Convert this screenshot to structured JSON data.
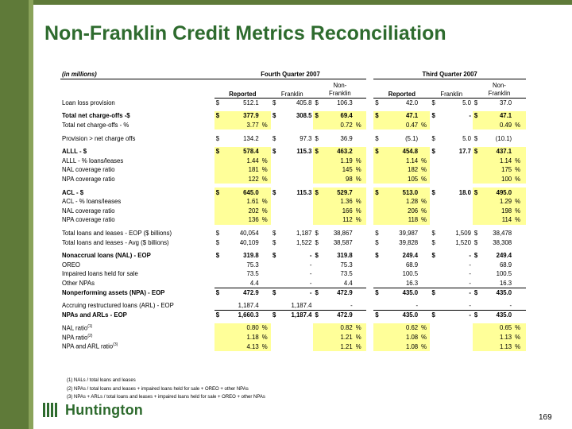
{
  "title": "Non-Franklin Credit Metrics Reconciliation",
  "units_label": "(in millions)",
  "period1": "Fourth Quarter 2007",
  "period2": "Third Quarter 2007",
  "col_headers": {
    "reported": "Reported",
    "franklin": "Franklin",
    "non_franklin_1": "Non-",
    "non_franklin_2": "Franklin"
  },
  "rows": [
    {
      "label": "Loan loss provision",
      "bold": false,
      "q4": [
        "$",
        "512.1",
        "",
        "$",
        "405.8",
        "$",
        "106.3",
        ""
      ],
      "q3": [
        "$",
        "42.0",
        "",
        "$",
        "5.0",
        "$",
        "37.0",
        ""
      ]
    },
    {
      "label": "Total net charge-offs -$",
      "bold": true,
      "q4": [
        "$",
        "377.9",
        "",
        "$",
        "308.5",
        "$",
        "69.4",
        ""
      ],
      "q3": [
        "$",
        "47.1",
        "",
        "$",
        "-",
        "$",
        "47.1",
        ""
      ]
    },
    {
      "label": "Total net charge-offs - %",
      "bold": false,
      "q4": [
        "",
        "3.77",
        "%",
        "",
        "",
        "",
        "0.72",
        "%"
      ],
      "q3": [
        "",
        "0.47",
        "%",
        "",
        "",
        "",
        "0.49",
        "%"
      ]
    },
    {
      "label": "Provision > net charge offs",
      "bold": false,
      "q4": [
        "$",
        "134.2",
        "",
        "$",
        "97.3",
        "$",
        "36.9",
        ""
      ],
      "q3": [
        "$",
        "(5.1)",
        "",
        "$",
        "5.0",
        "$",
        "(10.1)",
        ""
      ]
    },
    {
      "label": "ALLL - $",
      "bold": true,
      "q4": [
        "$",
        "578.4",
        "",
        "$",
        "115.3",
        "$",
        "463.2",
        ""
      ],
      "q3": [
        "$",
        "454.8",
        "",
        "$",
        "17.7",
        "$",
        "437.1",
        ""
      ]
    },
    {
      "label": "ALLL - % loans/leases",
      "bold": false,
      "q4": [
        "",
        "1.44",
        "%",
        "",
        "",
        "",
        "1.19",
        "%"
      ],
      "q3": [
        "",
        "1.14",
        "%",
        "",
        "",
        "",
        "1.14",
        "%"
      ]
    },
    {
      "label": "NAL coverage ratio",
      "bold": false,
      "q4": [
        "",
        "181",
        "%",
        "",
        "",
        "",
        "145",
        "%"
      ],
      "q3": [
        "",
        "182",
        "%",
        "",
        "",
        "",
        "175",
        "%"
      ]
    },
    {
      "label": "NPA coverage ratio",
      "bold": false,
      "q4": [
        "",
        "122",
        "%",
        "",
        "",
        "",
        "98",
        "%"
      ],
      "q3": [
        "",
        "105",
        "%",
        "",
        "",
        "",
        "100",
        "%"
      ]
    },
    {
      "label": "ACL - $",
      "bold": true,
      "q4": [
        "$",
        "645.0",
        "",
        "$",
        "115.3",
        "$",
        "529.7",
        ""
      ],
      "q3": [
        "$",
        "513.0",
        "",
        "$",
        "18.0",
        "$",
        "495.0",
        ""
      ]
    },
    {
      "label": "ACL - % loans/leases",
      "bold": false,
      "q4": [
        "",
        "1.61",
        "%",
        "",
        "",
        "",
        "1.36",
        "%"
      ],
      "q3": [
        "",
        "1.28",
        "%",
        "",
        "",
        "",
        "1.29",
        "%"
      ]
    },
    {
      "label": "NAL coverage ratio",
      "bold": false,
      "q4": [
        "",
        "202",
        "%",
        "",
        "",
        "",
        "166",
        "%"
      ],
      "q3": [
        "",
        "206",
        "%",
        "",
        "",
        "",
        "198",
        "%"
      ]
    },
    {
      "label": "NPA coverage ratio",
      "bold": false,
      "q4": [
        "",
        "136",
        "%",
        "",
        "",
        "",
        "112",
        "%"
      ],
      "q3": [
        "",
        "118",
        "%",
        "",
        "",
        "",
        "114",
        "%"
      ]
    },
    {
      "label": "Total loans and leases - EOP ($ billions)",
      "bold": false,
      "q4": [
        "$",
        "40,054",
        "",
        "$",
        "1,187",
        "$",
        "38,867",
        ""
      ],
      "q3": [
        "$",
        "39,987",
        "",
        "$",
        "1,509",
        "$",
        "38,478",
        ""
      ]
    },
    {
      "label": "Total loans and leases - Avg ($ billions)",
      "bold": false,
      "q4": [
        "$",
        "40,109",
        "",
        "$",
        "1,522",
        "$",
        "38,587",
        ""
      ],
      "q3": [
        "$",
        "39,828",
        "",
        "$",
        "1,520",
        "$",
        "38,308",
        ""
      ]
    },
    {
      "label": "Nonaccrual loans (NAL) - EOP",
      "bold": true,
      "q4": [
        "$",
        "319.8",
        "",
        "$",
        "-",
        "$",
        "319.8",
        ""
      ],
      "q3": [
        "$",
        "249.4",
        "",
        "$",
        "-",
        "$",
        "249.4",
        ""
      ]
    },
    {
      "label": "OREO",
      "bold": false,
      "q4": [
        "",
        "75.3",
        "",
        "",
        "-",
        "",
        "75.3",
        ""
      ],
      "q3": [
        "",
        "68.9",
        "",
        "",
        "-",
        "",
        "68.9",
        ""
      ]
    },
    {
      "label": "Impaired loans held for sale",
      "bold": false,
      "q4": [
        "",
        "73.5",
        "",
        "",
        "-",
        "",
        "73.5",
        ""
      ],
      "q3": [
        "",
        "100.5",
        "",
        "",
        "-",
        "",
        "100.5",
        ""
      ]
    },
    {
      "label": "Other NPAs",
      "bold": false,
      "q4": [
        "",
        "4.4",
        "",
        "",
        "-",
        "",
        "4.4",
        ""
      ],
      "q3": [
        "",
        "16.3",
        "",
        "",
        "-",
        "",
        "16.3",
        ""
      ]
    },
    {
      "label": "Nonperforming assets (NPA) - EOP",
      "bold": true,
      "q4": [
        "$",
        "472.9",
        "",
        "$",
        "-",
        "$",
        "472.9",
        ""
      ],
      "q3": [
        "$",
        "435.0",
        "",
        "$",
        "-",
        "$",
        "435.0",
        ""
      ]
    },
    {
      "label": "Accruing restructured loans (ARL) - EOP",
      "bold": false,
      "q4": [
        "",
        "1,187.4",
        "",
        "",
        "1,187.4",
        "",
        "-",
        ""
      ],
      "q3": [
        "",
        "-",
        "",
        "",
        "-",
        "",
        "-",
        ""
      ]
    },
    {
      "label": "NPAs and ARLs - EOP",
      "bold": true,
      "q4": [
        "$",
        "1,660.3",
        "",
        "$",
        "1,187.4",
        "$",
        "472.9",
        ""
      ],
      "q3": [
        "$",
        "435.0",
        "",
        "$",
        "-",
        "$",
        "435.0",
        ""
      ]
    },
    {
      "label": "NAL ratio",
      "sup": "(1)",
      "bold": false,
      "q4": [
        "",
        "0.80",
        "%",
        "",
        "",
        "",
        "0.82",
        "%"
      ],
      "q3": [
        "",
        "0.62",
        "%",
        "",
        "",
        "",
        "0.65",
        "%"
      ]
    },
    {
      "label": "NPA ratio",
      "sup": "(2)",
      "bold": false,
      "q4": [
        "",
        "1.18",
        "%",
        "",
        "",
        "",
        "1.21",
        "%"
      ],
      "q3": [
        "",
        "1.08",
        "%",
        "",
        "",
        "",
        "1.13",
        "%"
      ]
    },
    {
      "label": "NPA and ARL ratio",
      "sup": "(3)",
      "bold": false,
      "q4": [
        "",
        "4.13",
        "%",
        "",
        "",
        "",
        "1.21",
        "%"
      ],
      "q3": [
        "",
        "1.08",
        "%",
        "",
        "",
        "",
        "1.13",
        "%"
      ]
    }
  ],
  "footnotes": [
    "(1) NALs / total loans and leases",
    "(2) NPAs / total loans and leases + impaired loans held for sale + OREO + other NPAs",
    "(3) NPAs + ARLs / total loans and leases + impaired loans held for sale + OREO + other NPAs"
  ],
  "logo_text": "Huntington",
  "page_number": "169",
  "colors": {
    "title": "#2e6b2e",
    "bar": "#5f7a39",
    "highlight": "#ffff99"
  }
}
